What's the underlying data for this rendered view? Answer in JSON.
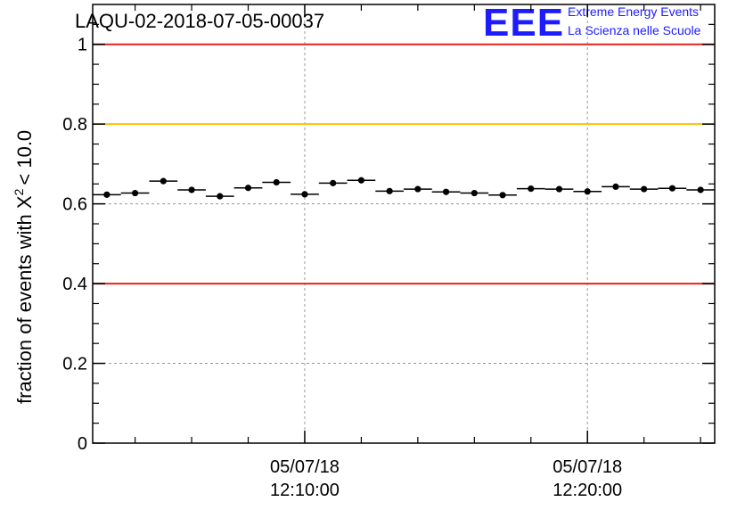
{
  "chart_data": {
    "type": "scatter",
    "title": "LAQU-02-2018-07-05-00037",
    "xlabel": "",
    "ylabel_prefix": "fraction of events with",
    "ylabel_symbol": "X",
    "ylabel_superscript": "2",
    "ylabel_suffix": "< 10.0",
    "ylim": [
      0,
      1.1
    ],
    "y_ticks": [
      0,
      0.2,
      0.4,
      0.6,
      0.8,
      1
    ],
    "y_tick_labels": [
      "0",
      "0.2",
      "0.4",
      "0.6",
      "0.8",
      "1"
    ],
    "x_unit": "minutes after 12:00:00",
    "xlim": [
      2.5,
      24.5
    ],
    "x_major_ticks": [
      10,
      20
    ],
    "x_tick_labels": [
      {
        "date": "05/07/18",
        "time": "12:10:00"
      },
      {
        "date": "05/07/18",
        "time": "12:20:00"
      }
    ],
    "x_minor_ticks": [
      4,
      6,
      8,
      12,
      14,
      16,
      18,
      22,
      24
    ],
    "grid": true,
    "reference_lines": [
      {
        "y": 1.0,
        "color": "#e8211d"
      },
      {
        "y": 0.8,
        "color": "#ffc000"
      },
      {
        "y": 0.4,
        "color": "#e8211d"
      }
    ],
    "bin_width_min": 1.0,
    "x": [
      3,
      4,
      5,
      6,
      7,
      8,
      9,
      10,
      11,
      12,
      13,
      14,
      15,
      16,
      17,
      18,
      19,
      20,
      21,
      22,
      23,
      24
    ],
    "values": [
      0.623,
      0.627,
      0.657,
      0.635,
      0.619,
      0.64,
      0.654,
      0.624,
      0.652,
      0.659,
      0.632,
      0.637,
      0.63,
      0.627,
      0.622,
      0.638,
      0.637,
      0.631,
      0.643,
      0.637,
      0.639,
      0.635
    ],
    "marker_color": "#000000"
  },
  "logo": {
    "mark": "EEE",
    "line1": "Extreme Energy Events",
    "line2": "La Scienza nelle Scuole",
    "color": "#1c1cff"
  }
}
